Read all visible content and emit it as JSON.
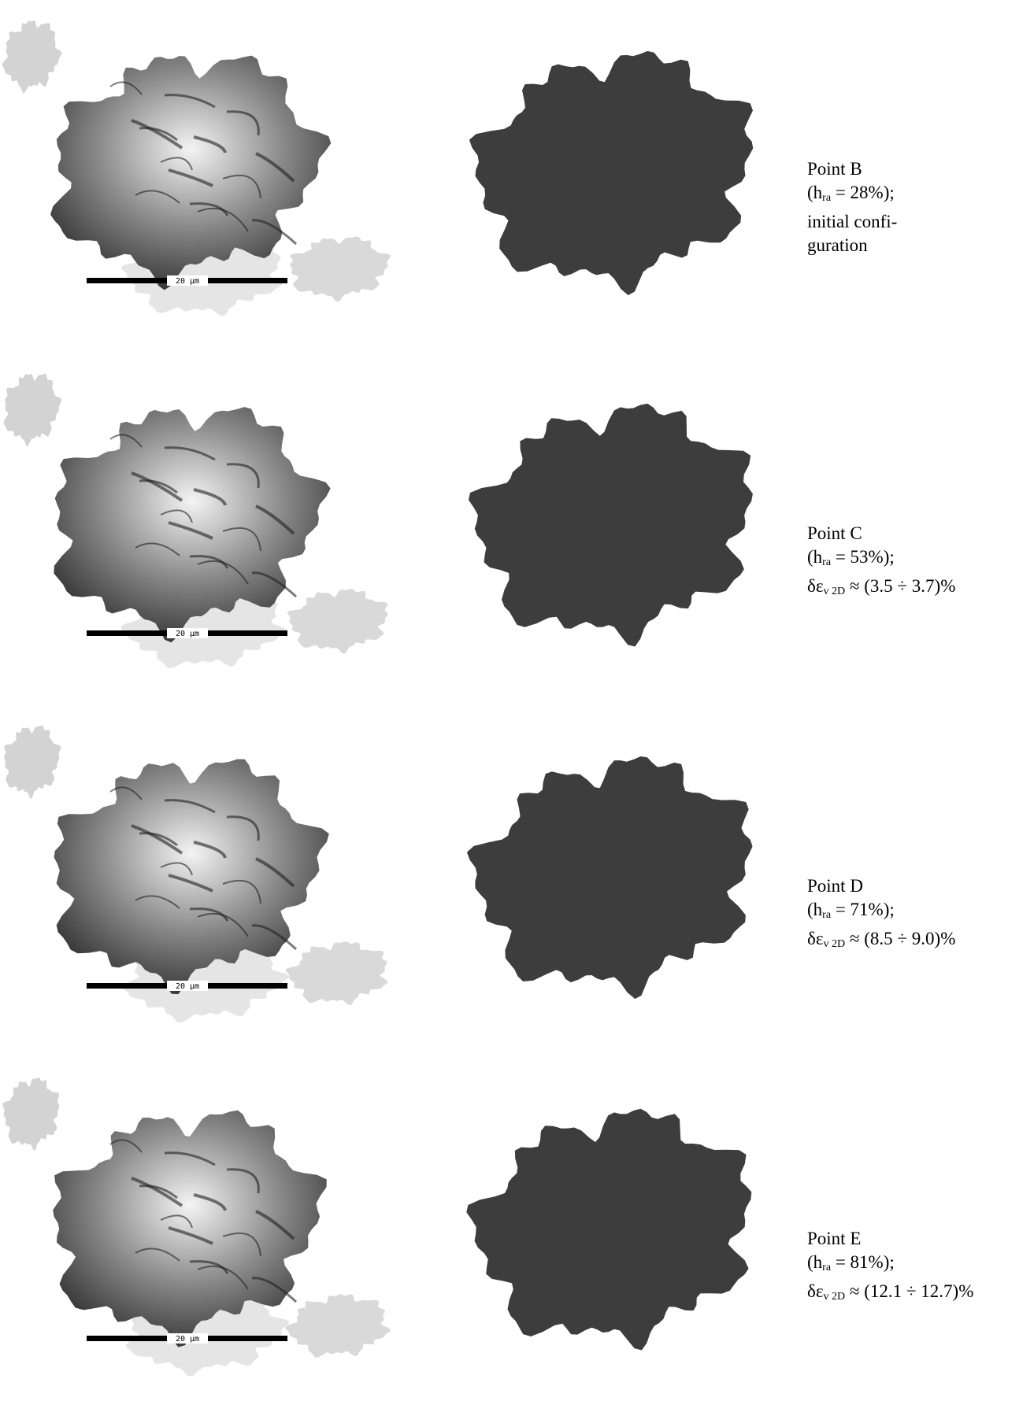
{
  "panels": [
    {
      "title": "Point B",
      "humidity": {
        "pre": "(h",
        "sub": "ra",
        "post": " = 28%);"
      },
      "lines": [
        "initial confi-",
        "guration"
      ],
      "scale_label": "20 μm"
    },
    {
      "title": "Point C",
      "humidity": {
        "pre": "(h",
        "sub": "ra",
        "post": " = 53%);"
      },
      "strain": {
        "pre": "δε",
        "sub": "v 2D",
        "post": " ≈ (3.5 ÷ 3.7)%"
      },
      "scale_label": "20 μm"
    },
    {
      "title": "Point D",
      "humidity": {
        "pre": "(h",
        "sub": "ra",
        "post": " = 71%);"
      },
      "strain": {
        "pre": "δε",
        "sub": "v 2D",
        "post": " ≈ (8.5 ÷ 9.0)%"
      },
      "scale_label": "20 μm"
    },
    {
      "title": "Point E",
      "humidity": {
        "pre": "(h",
        "sub": "ra",
        "post": " = 81%);"
      },
      "strain": {
        "pre": "δε",
        "sub": "v 2D",
        "post": " ≈ (12.1 ÷ 12.7)%"
      },
      "scale_label": "20 μm"
    }
  ]
}
